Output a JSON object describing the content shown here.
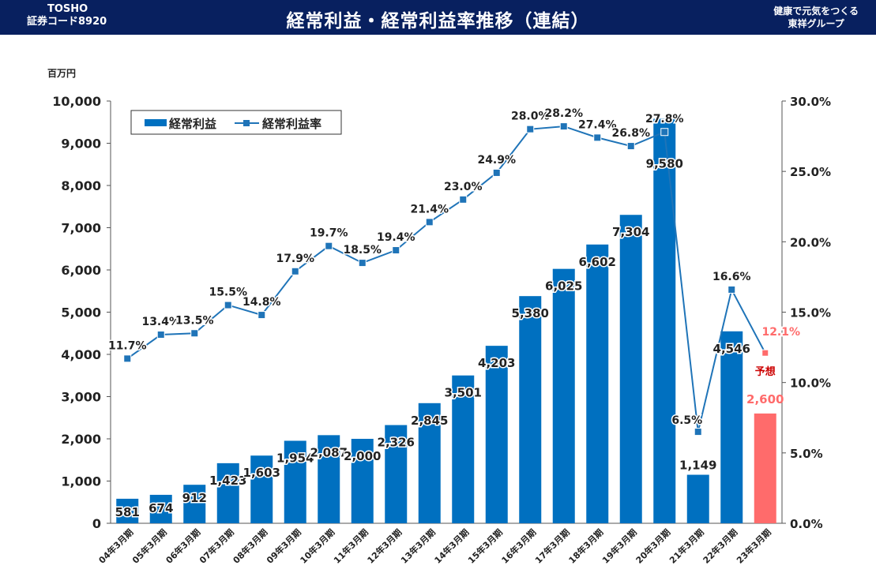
{
  "header": {
    "company": "TOSHO",
    "code": "証券コード8920",
    "title": "経常利益・経常利益率推移（連結）",
    "slogan_line1": "健康で元気をつくる",
    "slogan_line2": "東祥グループ"
  },
  "colors": {
    "bar": "#0070c0",
    "forecast": "#ff6b6b",
    "line": "#1f74b8",
    "banner": "#08205f"
  },
  "chart_data": {
    "type": "bar",
    "unit_label": "百万円",
    "categories": [
      "04年3月期",
      "05年3月期",
      "06年3月期",
      "07年3月期",
      "08年3月期",
      "09年3月期",
      "10年3月期",
      "11年3月期",
      "12年3月期",
      "13年3月期",
      "14年3月期",
      "15年3月期",
      "16年3月期",
      "17年3月期",
      "18年3月期",
      "19年3月期",
      "20年3月期",
      "21年3月期",
      "22年3月期",
      "23年3月期"
    ],
    "series": [
      {
        "name": "経常利益",
        "kind": "bar",
        "axis": "left",
        "values": [
          581,
          674,
          912,
          1423,
          1603,
          1954,
          2087,
          2000,
          2326,
          2845,
          3501,
          4203,
          5380,
          6025,
          6602,
          7304,
          9580,
          1149,
          4546,
          2600
        ],
        "labels": [
          "581",
          "674",
          "912",
          "1,423",
          "1,603",
          "1,954",
          "2,087",
          "2,000",
          "2,326",
          "2,845",
          "3,501",
          "4,203",
          "5,380",
          "6,025",
          "6,602",
          "7,304",
          "9,580",
          "1,149",
          "4,546",
          "2,600"
        ]
      },
      {
        "name": "経常利益率",
        "kind": "line",
        "axis": "right",
        "values": [
          11.7,
          13.4,
          13.5,
          15.5,
          14.8,
          17.9,
          19.7,
          18.5,
          19.4,
          21.4,
          23.0,
          24.9,
          28.0,
          28.2,
          27.4,
          26.8,
          27.8,
          6.5,
          16.6,
          12.1
        ],
        "labels": [
          "11.7%",
          "13.4%",
          "13.5%",
          "15.5%",
          "14.8%",
          "17.9%",
          "19.7%",
          "18.5%",
          "19.4%",
          "21.4%",
          "23.0%",
          "24.9%",
          "28.0%",
          "28.2%",
          "27.4%",
          "26.8%",
          "27.8%",
          "6.5%",
          "16.6%",
          "12.1%"
        ]
      }
    ],
    "forecast_index": 19,
    "forecast_label": "予想",
    "y_left": {
      "min": 0,
      "max": 10000,
      "ticks": [
        "0",
        "1,000",
        "2,000",
        "3,000",
        "4,000",
        "5,000",
        "6,000",
        "7,000",
        "8,000",
        "9,000",
        "10,000"
      ]
    },
    "y_right": {
      "min": 0,
      "max": 30,
      "ticks": [
        "0.0%",
        "5.0%",
        "10.0%",
        "15.0%",
        "20.0%",
        "25.0%",
        "30.0%"
      ]
    },
    "legend_position": "top-left",
    "grid": false
  }
}
